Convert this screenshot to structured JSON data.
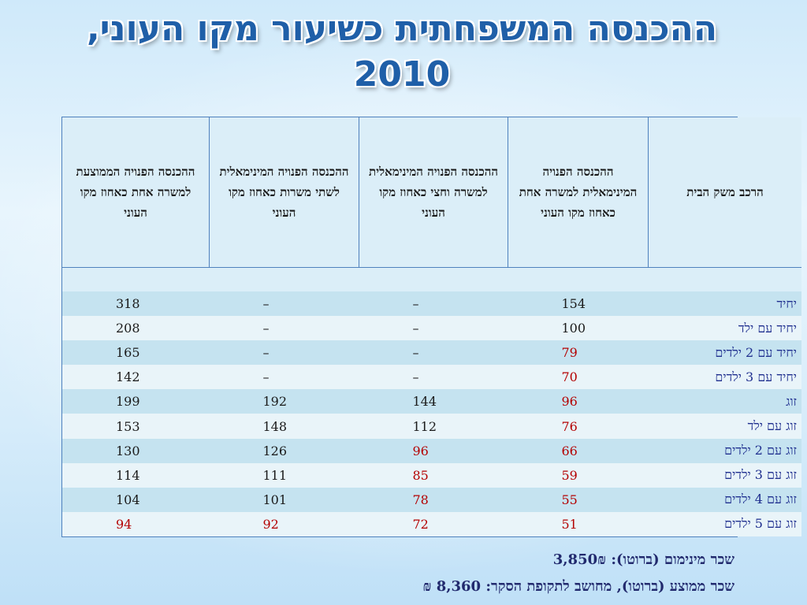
{
  "title": "ההכנסה המשפחתית כשיעור מקו העוני, 2010",
  "table": {
    "headers": [
      "הרכב משק הבית",
      "ההכנסה הפנויה המינימאלית למשרה אחת כאחוז מקו העוני",
      "ההכנסה הפנויה המינימאלית למשרה וחצי כאחוז מקו העוני",
      "ההכנסה הפנויה המינימאלית לשתי משרות כאחוז מקו העוני",
      "ההכנסה הפנויה הממוצעת למשרה אחת כאחוז מקו העוני"
    ],
    "rows": [
      {
        "label": "יחיד",
        "values": [
          "154",
          "–",
          "–",
          "318"
        ],
        "red": [
          false,
          false,
          false,
          false
        ]
      },
      {
        "label": "יחיד עם ילד",
        "values": [
          "100",
          "–",
          "–",
          "208"
        ],
        "red": [
          false,
          false,
          false,
          false
        ]
      },
      {
        "label": "יחיד עם 2 ילדים",
        "values": [
          "79",
          "–",
          "–",
          "165"
        ],
        "red": [
          true,
          false,
          false,
          false
        ]
      },
      {
        "label": "יחיד עם 3 ילדים",
        "values": [
          "70",
          "–",
          "–",
          "142"
        ],
        "red": [
          true,
          false,
          false,
          false
        ]
      },
      {
        "label": "זוג",
        "values": [
          "96",
          "144",
          "192",
          "199"
        ],
        "red": [
          true,
          false,
          false,
          false
        ]
      },
      {
        "label": "זוג עם ילד",
        "values": [
          "76",
          "112",
          "148",
          "153"
        ],
        "red": [
          true,
          false,
          false,
          false
        ]
      },
      {
        "label": "זוג עם 2 ילדים",
        "values": [
          "66",
          "96",
          "126",
          "130"
        ],
        "red": [
          true,
          true,
          false,
          false
        ]
      },
      {
        "label": "זוג עם 3 ילדים",
        "values": [
          "59",
          "85",
          "111",
          "114"
        ],
        "red": [
          true,
          true,
          false,
          false
        ]
      },
      {
        "label": "זוג עם 4 ילדים",
        "values": [
          "55",
          "78",
          "101",
          "104"
        ],
        "red": [
          true,
          true,
          false,
          false
        ]
      },
      {
        "label": "זוג עם 5 ילדים",
        "values": [
          "51",
          "72",
          "92",
          "94"
        ],
        "red": [
          true,
          true,
          true,
          true
        ]
      }
    ]
  },
  "notes": {
    "min_wage": "שכר מינימום (ברוטו): 3,850₪",
    "avg_wage": "שכר ממוצע (ברוטו), מחושב לתקופת הסקר: 8,360 ₪"
  },
  "colors": {
    "title": "#1f5fa8",
    "header_bg": "#dbeef8",
    "band_bg": "#c5e3f0",
    "plain_bg": "#e9f4f9",
    "highlight": "#b40000",
    "row_label": "#1f2f8f"
  }
}
